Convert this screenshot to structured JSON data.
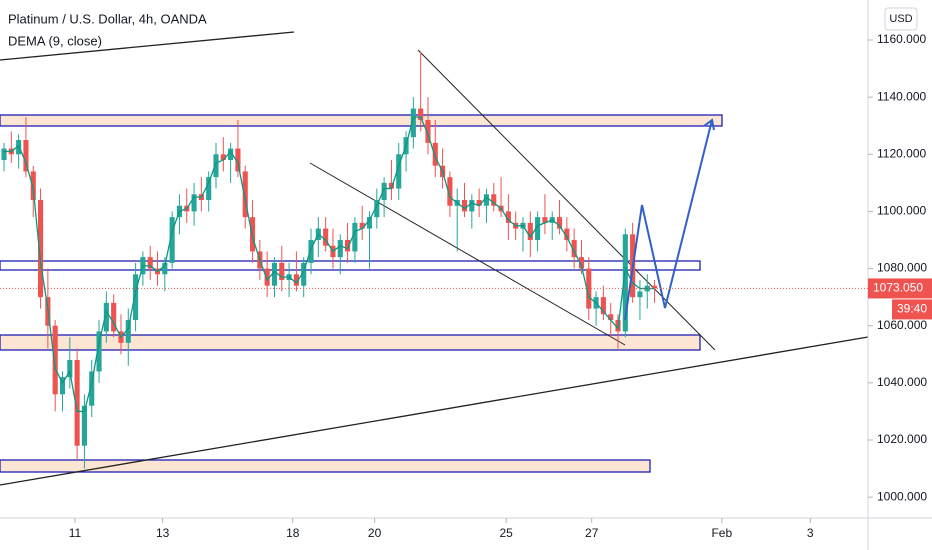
{
  "chart_data": {
    "type": "candlestick",
    "title": "Platinum / U.S. Dollar, 4h, OANDA",
    "indicator": "DEMA (9, close)",
    "currency": "USD",
    "up_color": "#26a69a",
    "down_color": "#ef5350",
    "indicator_color": "#089981",
    "xlim": [
      -0.55,
      118.2
    ],
    "xticks": [
      {
        "value": 9.7,
        "label": "11"
      },
      {
        "value": 21.7,
        "label": "13"
      },
      {
        "value": 39.5,
        "label": "18"
      },
      {
        "value": 50.7,
        "label": "20"
      },
      {
        "value": 68.7,
        "label": "25"
      },
      {
        "value": 80.4,
        "label": "27"
      },
      {
        "value": 98.2,
        "label": "Feb"
      },
      {
        "value": 110.3,
        "label": "3"
      }
    ],
    "ylim": [
      992.7,
      1174
    ],
    "yticks": [
      {
        "value": 1000,
        "label": "1000.000"
      },
      {
        "value": 1020,
        "label": "1020.000"
      },
      {
        "value": 1040,
        "label": "1040.000"
      },
      {
        "value": 1060,
        "label": "1060.000"
      },
      {
        "value": 1080,
        "label": "1080.000"
      },
      {
        "value": 1100,
        "label": "1100.000"
      },
      {
        "value": 1120,
        "label": "1120.000"
      },
      {
        "value": 1140,
        "label": "1140.000"
      },
      {
        "value": 1160,
        "label": "1160.000"
      }
    ],
    "last_price": 1073.05,
    "last_price_label": "1073.050",
    "countdown": "39:40",
    "candles": [
      [
        1118,
        1124,
        1114,
        1122
      ],
      [
        1122,
        1128,
        1117,
        1120
      ],
      [
        1120,
        1127,
        1115,
        1125
      ],
      [
        1125,
        1133,
        1112,
        1114
      ],
      [
        1114,
        1116,
        1098,
        1104
      ],
      [
        1104,
        1108,
        1066,
        1070
      ],
      [
        1070,
        1080,
        1052,
        1060
      ],
      [
        1060,
        1062,
        1030,
        1036
      ],
      [
        1036,
        1044,
        1030,
        1042
      ],
      [
        1042,
        1056,
        1038,
        1048
      ],
      [
        1048,
        1052,
        1013,
        1018
      ],
      [
        1018,
        1036,
        1010,
        1032
      ],
      [
        1032,
        1048,
        1028,
        1044
      ],
      [
        1044,
        1062,
        1040,
        1058
      ],
      [
        1058,
        1072,
        1054,
        1068
      ],
      [
        1068,
        1071,
        1056,
        1058
      ],
      [
        1058,
        1064,
        1050,
        1054
      ],
      [
        1054,
        1066,
        1046,
        1062
      ],
      [
        1062,
        1082,
        1058,
        1078
      ],
      [
        1078,
        1086,
        1074,
        1084
      ],
      [
        1084,
        1088,
        1076,
        1080
      ],
      [
        1080,
        1086,
        1074,
        1078
      ],
      [
        1078,
        1084,
        1072,
        1082
      ],
      [
        1082,
        1100,
        1080,
        1098
      ],
      [
        1098,
        1106,
        1092,
        1102
      ],
      [
        1102,
        1108,
        1096,
        1100
      ],
      [
        1100,
        1110,
        1095,
        1106
      ],
      [
        1106,
        1112,
        1100,
        1104
      ],
      [
        1104,
        1114,
        1100,
        1112
      ],
      [
        1112,
        1124,
        1108,
        1120
      ],
      [
        1120,
        1126,
        1114,
        1118
      ],
      [
        1118,
        1124,
        1110,
        1122
      ],
      [
        1122,
        1132,
        1112,
        1114
      ],
      [
        1114,
        1116,
        1094,
        1098
      ],
      [
        1098,
        1104,
        1082,
        1086
      ],
      [
        1086,
        1090,
        1076,
        1080
      ],
      [
        1080,
        1086,
        1070,
        1074
      ],
      [
        1074,
        1084,
        1070,
        1082
      ],
      [
        1082,
        1088,
        1072,
        1076
      ],
      [
        1076,
        1082,
        1070,
        1078
      ],
      [
        1078,
        1086,
        1072,
        1074
      ],
      [
        1074,
        1084,
        1070,
        1082
      ],
      [
        1082,
        1094,
        1078,
        1090
      ],
      [
        1090,
        1098,
        1084,
        1094
      ],
      [
        1094,
        1098,
        1086,
        1088
      ],
      [
        1088,
        1094,
        1080,
        1084
      ],
      [
        1084,
        1092,
        1078,
        1090
      ],
      [
        1090,
        1096,
        1082,
        1086
      ],
      [
        1086,
        1098,
        1082,
        1096
      ],
      [
        1096,
        1102,
        1090,
        1094
      ],
      [
        1094,
        1100,
        1080,
        1098
      ],
      [
        1098,
        1108,
        1094,
        1104
      ],
      [
        1104,
        1112,
        1098,
        1110
      ],
      [
        1110,
        1118,
        1104,
        1108
      ],
      [
        1108,
        1124,
        1104,
        1120
      ],
      [
        1120,
        1128,
        1114,
        1126
      ],
      [
        1126,
        1140,
        1122,
        1136
      ],
      [
        1136,
        1156,
        1128,
        1132
      ],
      [
        1132,
        1140,
        1120,
        1124
      ],
      [
        1124,
        1132,
        1112,
        1116
      ],
      [
        1116,
        1122,
        1108,
        1112
      ],
      [
        1112,
        1114,
        1098,
        1102
      ],
      [
        1102,
        1108,
        1086,
        1104
      ],
      [
        1104,
        1110,
        1098,
        1100
      ],
      [
        1100,
        1106,
        1094,
        1104
      ],
      [
        1104,
        1108,
        1098,
        1102
      ],
      [
        1102,
        1108,
        1096,
        1106
      ],
      [
        1106,
        1110,
        1100,
        1102
      ],
      [
        1102,
        1112,
        1098,
        1100
      ],
      [
        1100,
        1106,
        1090,
        1096
      ],
      [
        1096,
        1100,
        1090,
        1094
      ],
      [
        1094,
        1098,
        1086,
        1096
      ],
      [
        1096,
        1100,
        1084,
        1090
      ],
      [
        1090,
        1100,
        1086,
        1098
      ],
      [
        1098,
        1106,
        1092,
        1096
      ],
      [
        1096,
        1100,
        1090,
        1098
      ],
      [
        1098,
        1104,
        1092,
        1094
      ],
      [
        1094,
        1098,
        1086,
        1090
      ],
      [
        1090,
        1094,
        1080,
        1084
      ],
      [
        1084,
        1090,
        1078,
        1080
      ],
      [
        1080,
        1084,
        1062,
        1066
      ],
      [
        1066,
        1072,
        1060,
        1070
      ],
      [
        1070,
        1074,
        1062,
        1064
      ],
      [
        1064,
        1068,
        1056,
        1062
      ],
      [
        1062,
        1064,
        1052,
        1058
      ],
      [
        1058,
        1094,
        1056,
        1092
      ],
      [
        1092,
        1096,
        1068,
        1070
      ],
      [
        1070,
        1076,
        1062,
        1072
      ],
      [
        1072,
        1078,
        1066,
        1074
      ],
      [
        1074,
        1076,
        1068,
        1073.05
      ]
    ],
    "dema": [
      1121,
      1121,
      1123,
      1117,
      1108,
      1082,
      1066,
      1045,
      1040,
      1044,
      1030,
      1030,
      1040,
      1054,
      1065,
      1061,
      1056,
      1059,
      1072,
      1081,
      1081,
      1079,
      1081,
      1093,
      1100,
      1101,
      1105,
      1105,
      1110,
      1117,
      1118,
      1121,
      1117,
      1104,
      1091,
      1083,
      1076,
      1079,
      1077,
      1077,
      1075,
      1079,
      1087,
      1092,
      1090,
      1086,
      1088,
      1087,
      1093,
      1094,
      1097,
      1102,
      1108,
      1108,
      1116,
      1123,
      1133,
      1133,
      1127,
      1119,
      1114,
      1105,
      1103,
      1101,
      1103,
      1102,
      1105,
      1103,
      1101,
      1097,
      1095,
      1095,
      1091,
      1095,
      1096,
      1097,
      1095,
      1091,
      1086,
      1081,
      1070,
      1068,
      1065,
      1062,
      1059,
      1080,
      1075,
      1073,
      1073,
      1073
    ]
  }
}
